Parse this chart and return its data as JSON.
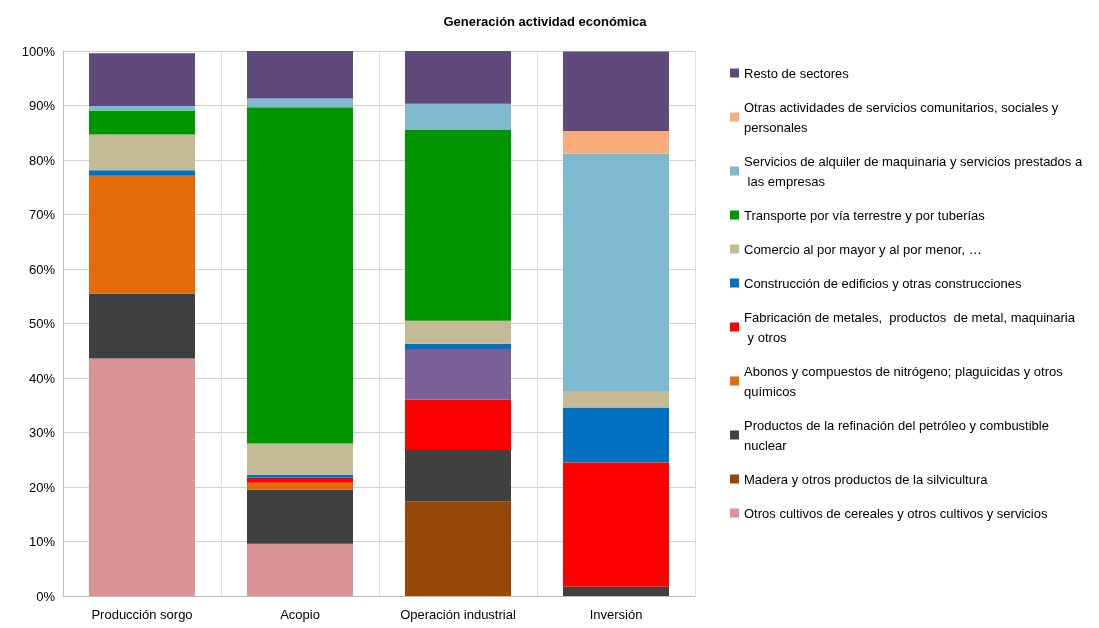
{
  "chart_data": {
    "type": "bar",
    "title": "Generación actividad económica",
    "stacked": true,
    "categories": [
      "Producción sorgo",
      "Acopio",
      "Operación industrial",
      "Inversión"
    ],
    "series": [
      {
        "name": "Otros cultivos de cereales y otros cultivos y servicios",
        "color": "#d99594",
        "values": [
          43.6,
          9.6,
          null,
          null
        ]
      },
      {
        "name": "Madera y otros productos de la silvicultura",
        "color": "#954807",
        "values": [
          null,
          null,
          17.4,
          null
        ]
      },
      {
        "name": "Productos de la refinación del petróleo y combustible nuclear",
        "color": "#404040",
        "values": [
          11.9,
          9.9,
          9.4,
          1.7
        ]
      },
      {
        "name": "Abonos y compuestos de nitrógeno; plaguicidas y otros  químicos",
        "color": "#e36c09",
        "values": [
          21.6,
          1.3,
          null,
          null
        ]
      },
      {
        "name": "Fabricación de metales,  productos  de metal, maquinaria y otros",
        "color": "#ff0000",
        "values": [
          null,
          0.9,
          9.2,
          22.8
        ]
      },
      {
        "color": "#7a5f99",
        "values": [
          null,
          null,
          9.3,
          null
        ]
      },
      {
        "name": "Construcción de edificios y otras construcciones",
        "color": "#0070c0",
        "values": [
          1.0,
          0.5,
          1.0,
          10.1
        ]
      },
      {
        "name": "Comercio al por mayor y al por menor, …",
        "color": "#c4bb96",
        "values": [
          6.6,
          5.8,
          4.2,
          3.0
        ]
      },
      {
        "name": "Transporte por vía terrestre y por tuberías",
        "color": "#009600",
        "values": [
          4.4,
          61.7,
          35.0,
          null
        ]
      },
      {
        "name": "Servicios de alquiler de maquinaria y servicios prestados a las empresas",
        "color": "#7eb9cf",
        "values": [
          0.8,
          1.6,
          4.8,
          43.6
        ]
      },
      {
        "name": "Otras actividades de servicios comunitarios, sociales y personales",
        "color": "#f9ac7a",
        "values": [
          null,
          null,
          null,
          4.1
        ]
      },
      {
        "name": "Resto de sectores",
        "color": "#604a7b",
        "values": [
          9.7,
          8.7,
          9.7,
          14.6
        ]
      }
    ],
    "ylim": [
      0,
      100
    ],
    "yticks": [
      {
        "value": 0,
        "label": "0%"
      },
      {
        "value": 10,
        "label": "10%"
      },
      {
        "value": 20,
        "label": "20%"
      },
      {
        "value": 30,
        "label": "30%"
      },
      {
        "value": 40,
        "label": "40%"
      },
      {
        "value": 50,
        "label": "50%"
      },
      {
        "value": 60,
        "label": "60%"
      },
      {
        "value": 70,
        "label": "70%"
      },
      {
        "value": 80,
        "label": "80%"
      },
      {
        "value": 90,
        "label": "90%"
      },
      {
        "value": 100,
        "label": "100%"
      }
    ],
    "grid": true,
    "legend": "right"
  }
}
